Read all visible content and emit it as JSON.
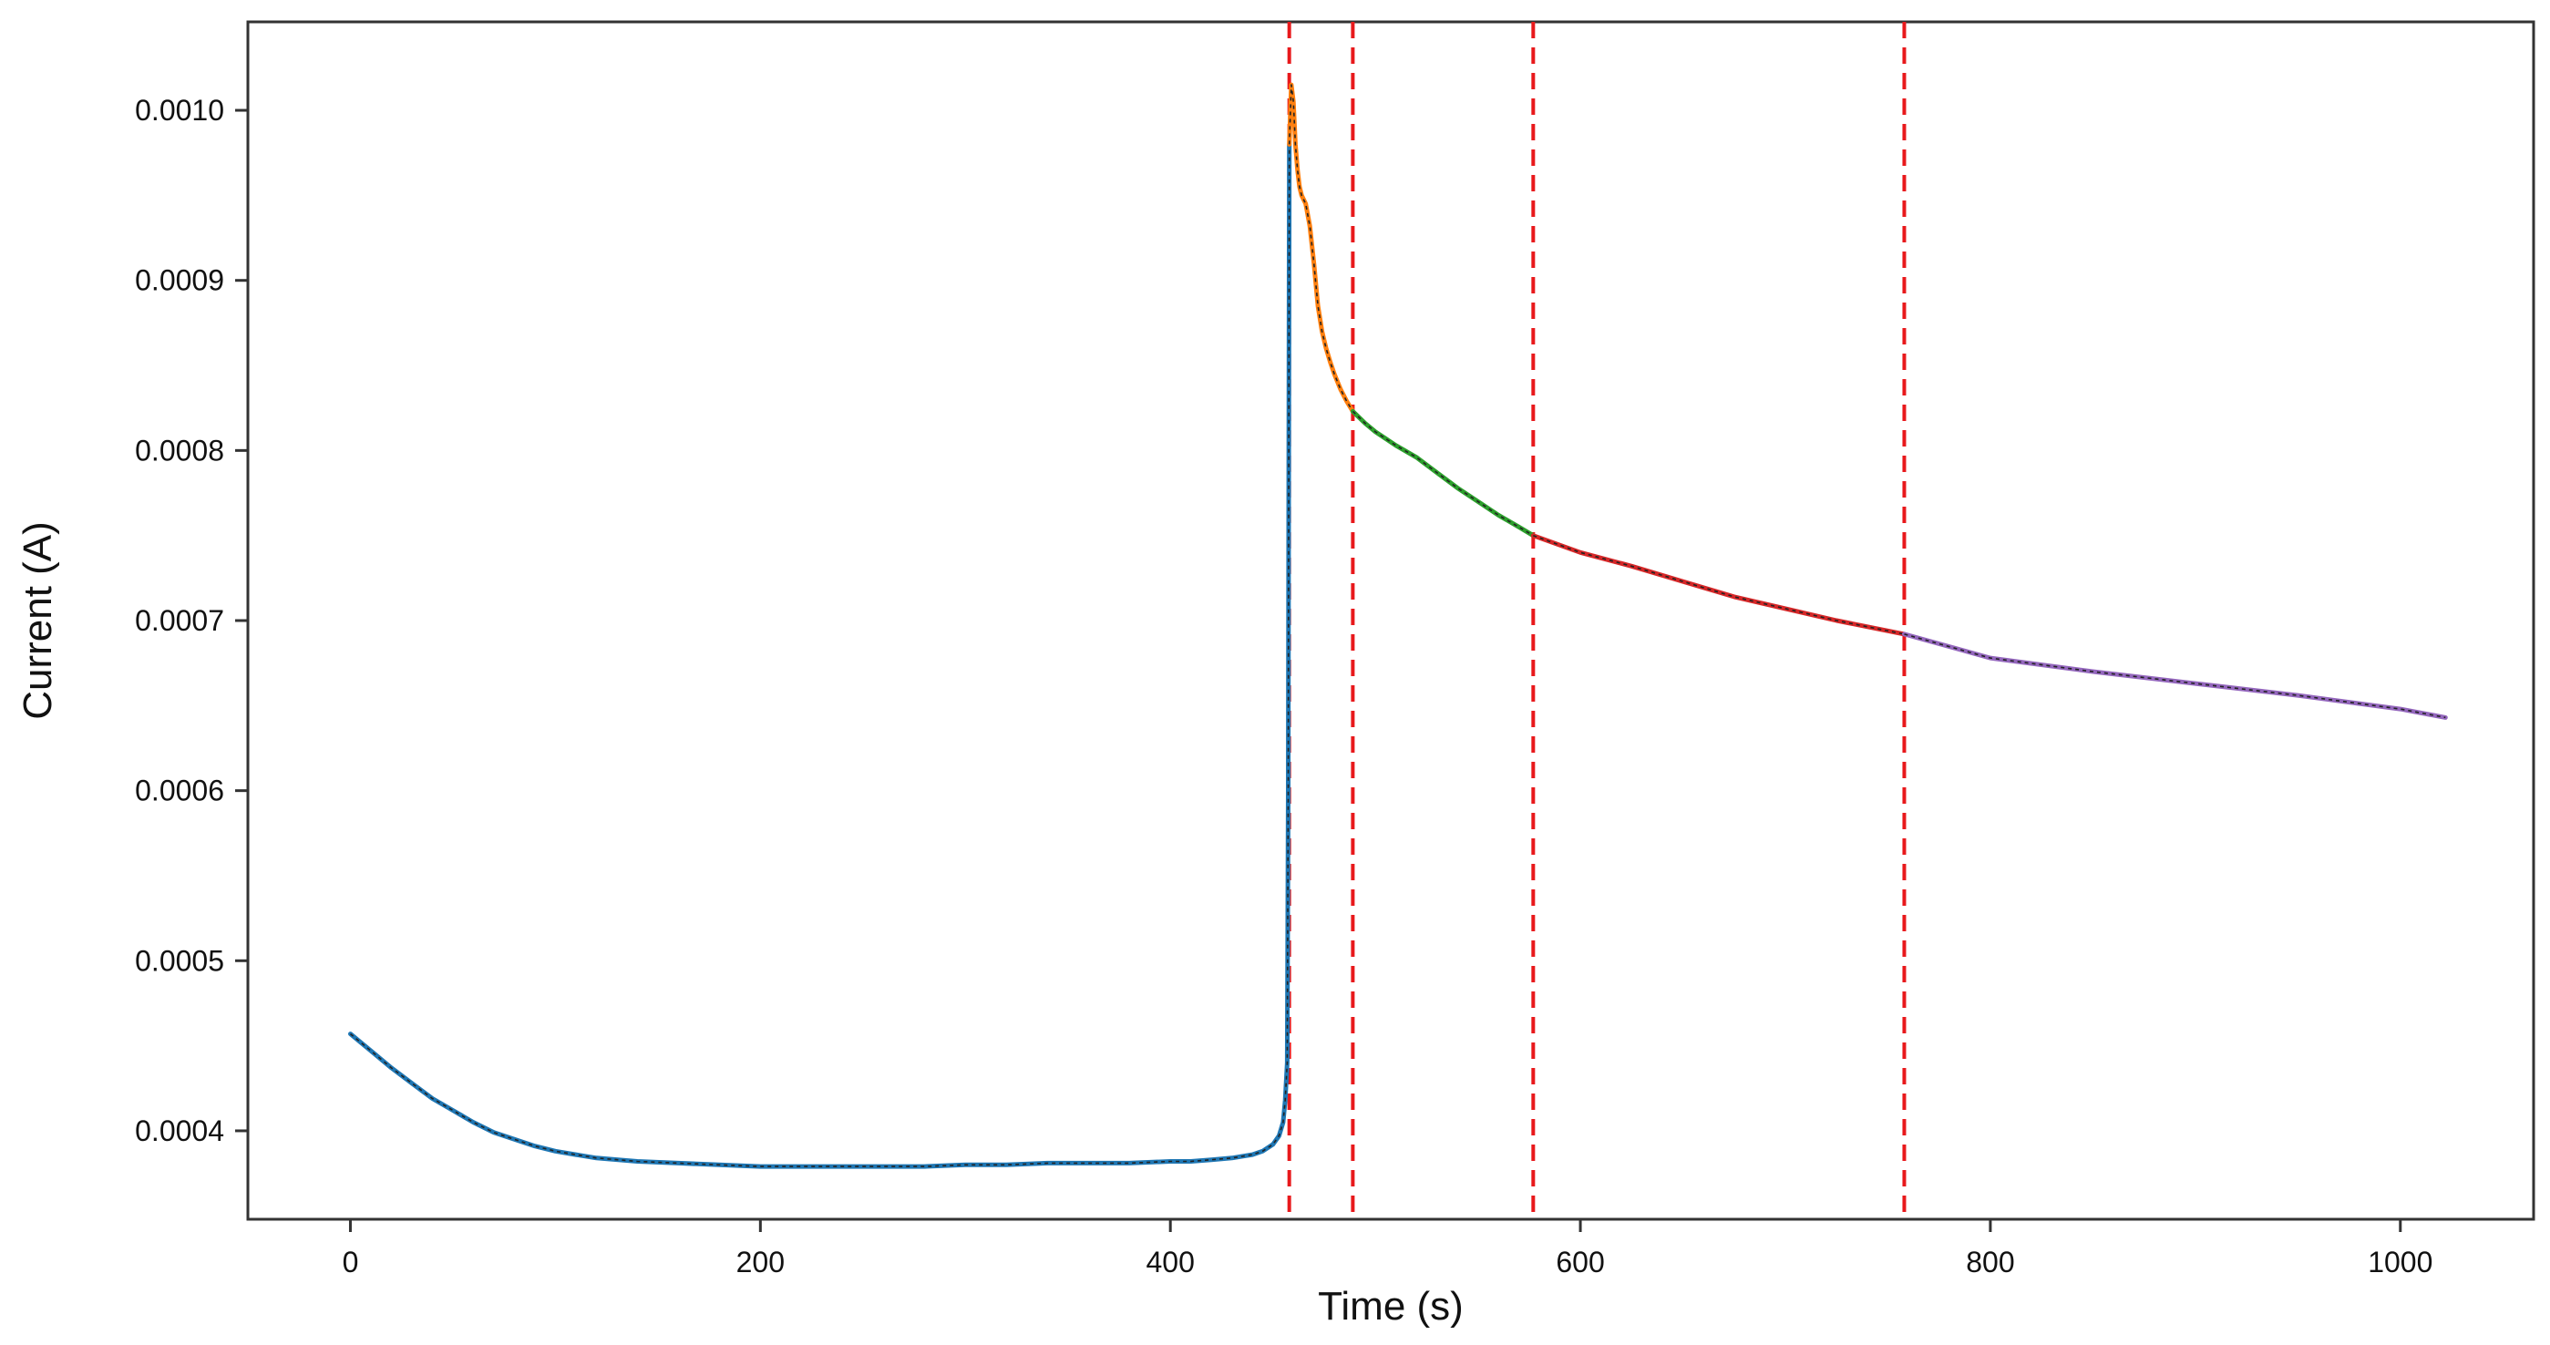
{
  "chart_data": {
    "type": "line",
    "title": "",
    "xlabel": "Time (s)",
    "ylabel": "Current (A)",
    "xlim": [
      -50,
      1065
    ],
    "ylim": [
      0.000348,
      0.001052
    ],
    "x_ticks": [
      0,
      200,
      400,
      600,
      800,
      1000
    ],
    "x_tick_labels": [
      "0",
      "200",
      "400",
      "600",
      "800",
      "1000"
    ],
    "y_ticks": [
      0.0004,
      0.0005,
      0.0006,
      0.0007,
      0.0008,
      0.0009,
      0.001
    ],
    "y_tick_labels": [
      "0.0004",
      "0.0005",
      "0.0006",
      "0.0007",
      "0.0008",
      "0.0009",
      "0.0010"
    ],
    "grid": false,
    "legend": "none",
    "vlines": {
      "x": [
        458,
        489,
        577,
        758
      ],
      "color": "#e8191c",
      "style": "dashed"
    },
    "overlay_color": "#222222",
    "series": [
      {
        "color": "#1f77b4",
        "x": [
          0,
          10,
          20,
          30,
          40,
          50,
          60,
          70,
          80,
          90,
          100,
          110,
          120,
          140,
          160,
          180,
          200,
          220,
          240,
          260,
          280,
          300,
          320,
          340,
          360,
          380,
          400,
          410,
          420,
          430,
          440,
          445,
          450,
          453,
          455,
          456,
          457,
          457.5,
          458
        ],
        "values": [
          0.000457,
          0.000447,
          0.000437,
          0.000428,
          0.000419,
          0.000412,
          0.000405,
          0.000399,
          0.000395,
          0.000391,
          0.000388,
          0.000386,
          0.000384,
          0.000382,
          0.000381,
          0.00038,
          0.000379,
          0.000379,
          0.000379,
          0.000379,
          0.000379,
          0.00038,
          0.00038,
          0.000381,
          0.000381,
          0.000381,
          0.000382,
          0.000382,
          0.000383,
          0.000384,
          0.000386,
          0.000388,
          0.000392,
          0.000397,
          0.000405,
          0.000418,
          0.00044,
          0.0006,
          0.00098
        ]
      },
      {
        "color": "#ff7f0e",
        "x": [
          458,
          459,
          460,
          461,
          462,
          463,
          464,
          466,
          468,
          470,
          472,
          474,
          476,
          478,
          480,
          483,
          486,
          489
        ],
        "values": [
          0.00098,
          0.001015,
          0.001005,
          0.00098,
          0.000965,
          0.000955,
          0.00095,
          0.000945,
          0.000932,
          0.00091,
          0.000885,
          0.00087,
          0.00086,
          0.000852,
          0.000845,
          0.000836,
          0.000829,
          0.000823
        ]
      },
      {
        "color": "#2ca02c",
        "x": [
          489,
          495,
          500,
          510,
          520,
          530,
          540,
          550,
          560,
          570,
          577
        ],
        "values": [
          0.000823,
          0.000816,
          0.000811,
          0.000803,
          0.000796,
          0.000787,
          0.000778,
          0.00077,
          0.000762,
          0.000755,
          0.00075
        ]
      },
      {
        "color": "#d62728",
        "x": [
          577,
          600,
          625,
          650,
          675,
          700,
          725,
          758
        ],
        "values": [
          0.00075,
          0.00074,
          0.000732,
          0.000723,
          0.000714,
          0.000707,
          0.0007,
          0.000692
        ]
      },
      {
        "color": "#9467bd",
        "x": [
          758,
          800,
          850,
          900,
          950,
          1000,
          1022
        ],
        "values": [
          0.000692,
          0.000678,
          0.00067,
          0.000663,
          0.000656,
          0.000648,
          0.000643
        ]
      }
    ]
  }
}
